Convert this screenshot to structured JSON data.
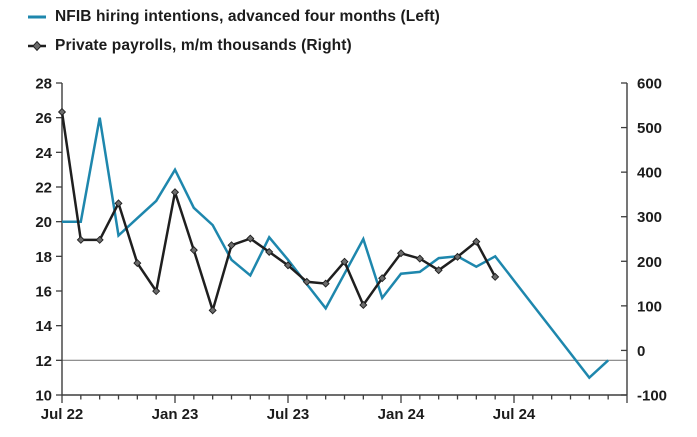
{
  "legend": {
    "items": [
      {
        "label": "NFIB hiring intentions, advanced four months (Left)",
        "color": "#1e87ad",
        "marker": "line"
      },
      {
        "label": "Private payrolls, m/m thousands (Right)",
        "color": "#1f1f1f",
        "marker": "line-diamond"
      }
    ]
  },
  "colors": {
    "nfib_line": "#1e87ad",
    "payrolls_line": "#1f1f1f",
    "marker_fill": "#6b6b6b",
    "axis": "#3d3d3d",
    "reference_line": "#808080",
    "tick_text": "#1c1c1c",
    "background": "#ffffff"
  },
  "chart_data": {
    "type": "line",
    "title": "",
    "xlabel": "",
    "ylabel_left": "",
    "ylabel_right": "",
    "grid": false,
    "legend_position": "top-left",
    "categories": [
      "Jul 22",
      "Aug 22",
      "Sep 22",
      "Oct 22",
      "Nov 22",
      "Dec 22",
      "Jan 23",
      "Feb 23",
      "Mar 23",
      "Apr 23",
      "May 23",
      "Jun 23",
      "Jul 23",
      "Aug 23",
      "Sep 23",
      "Oct 23",
      "Nov 23",
      "Dec 23",
      "Jan 24",
      "Feb 24",
      "Mar 24",
      "Apr 24",
      "May 24",
      "Jun 24",
      "Jul 24",
      "Aug 24",
      "Sep 24",
      "Oct 24",
      "Nov 24",
      "Dec 24"
    ],
    "x_axis": {
      "labeled_ticks": [
        "Jul 22",
        "Jan 23",
        "Jul 23",
        "Jan 24",
        "Jul 24"
      ],
      "label_every_n_months": 6,
      "minor_ticks": "monthly"
    },
    "left_axis": {
      "min": 10,
      "max": 28,
      "tick_step": 2,
      "ticks": [
        10,
        12,
        14,
        16,
        18,
        20,
        22,
        24,
        26,
        28
      ]
    },
    "right_axis": {
      "min": -100,
      "max": 600,
      "tick_step": 100,
      "ticks": [
        -100,
        0,
        100,
        200,
        300,
        400,
        500,
        600
      ]
    },
    "reference_line": {
      "axis": "left",
      "value": 12
    },
    "series": [
      {
        "name": "NFIB hiring intentions, advanced four months",
        "axis": "left",
        "color": "#1e87ad",
        "marker": "none",
        "values": [
          20,
          20,
          26,
          19.2,
          20.2,
          21.2,
          23,
          20.8,
          19.8,
          17.8,
          16.9,
          19.1,
          17.8,
          16.4,
          15,
          17,
          19,
          15.6,
          17,
          17.1,
          17.9,
          18,
          17.4,
          18,
          16.6,
          15.2,
          13.8,
          12.4,
          11,
          12
        ]
      },
      {
        "name": "Private payrolls, m/m thousands",
        "axis": "right",
        "color": "#1f1f1f",
        "marker": "diamond",
        "values": [
          535,
          248,
          248,
          330,
          196,
          133,
          355,
          225,
          90,
          236,
          251,
          221,
          191,
          154,
          150,
          199,
          102,
          162,
          218,
          206,
          180,
          210,
          244,
          165,
          null,
          null,
          null,
          null,
          null,
          null
        ]
      }
    ]
  }
}
